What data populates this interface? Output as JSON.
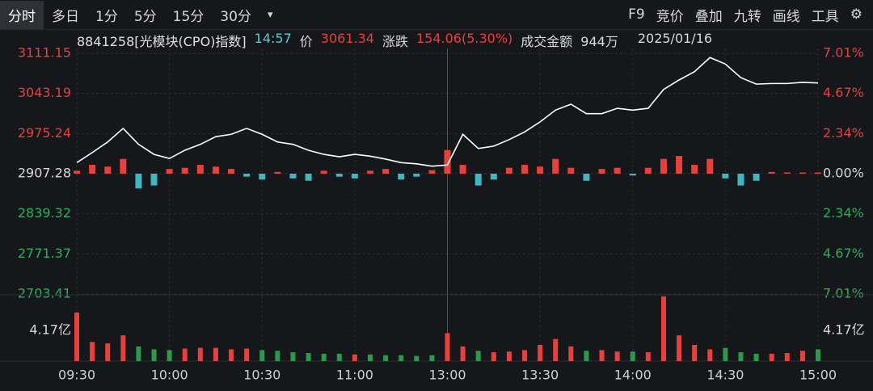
{
  "toolbar": {
    "tabs": [
      "分时",
      "多日",
      "1分",
      "5分",
      "15分",
      "30分"
    ],
    "tools": [
      "F9",
      "竞价",
      "叠加",
      "九转",
      "画线",
      "工具"
    ]
  },
  "info": {
    "code": "8841258[光模块(CPO)指数]",
    "time": "14:57",
    "price_label": "价",
    "price": "3061.34",
    "change_label": "涨跌",
    "change": "154.06(5.30%)",
    "amount_label": "成交金额",
    "amount": "944万",
    "date": "2025/01/16"
  },
  "chart_data": [
    {
      "type": "line",
      "name": "price",
      "color": "#ffffff",
      "up_color": "#e8403b",
      "down_color": "#3fb7c0",
      "x": [
        0,
        5,
        10,
        15,
        20,
        25,
        30,
        35,
        40,
        45,
        50,
        55,
        60,
        65,
        70,
        75,
        80,
        85,
        90,
        95,
        100,
        105,
        110,
        115,
        120,
        125,
        130,
        135,
        140,
        145,
        150,
        155,
        160,
        165,
        170,
        175,
        180,
        185,
        190,
        195,
        200,
        205,
        210,
        215,
        220,
        225,
        230,
        235,
        240
      ],
      "values": [
        2926,
        2943,
        2961,
        2984,
        2957,
        2940,
        2933,
        2947,
        2957,
        2970,
        2974,
        2984,
        2974,
        2961,
        2957,
        2947,
        2940,
        2936,
        2940,
        2937,
        2932,
        2926,
        2924,
        2920,
        2922,
        2974,
        2950,
        2954,
        2965,
        2978,
        2995,
        3015,
        3025,
        3009,
        3009,
        3018,
        3015,
        3018,
        3050,
        3066,
        3080,
        3104,
        3093,
        3070,
        3059,
        3060,
        3060,
        3062,
        3061
      ],
      "histogram": [
        5,
        15,
        12,
        25,
        -25,
        -20,
        8,
        10,
        15,
        12,
        8,
        -5,
        -10,
        3,
        -8,
        -12,
        5,
        -5,
        -8,
        5,
        8,
        -10,
        -5,
        6,
        40,
        15,
        -20,
        -10,
        10,
        15,
        12,
        25,
        10,
        -12,
        8,
        10,
        -3,
        10,
        25,
        30,
        15,
        25,
        -8,
        -20,
        -12,
        3,
        2,
        2,
        2
      ],
      "xlim": [
        0,
        240
      ],
      "xticks": [
        {
          "value": 0,
          "label": "09:30"
        },
        {
          "value": 30,
          "label": "10:00"
        },
        {
          "value": 60,
          "label": "10:30"
        },
        {
          "value": 90,
          "label": "11:00"
        },
        {
          "value": 120,
          "label": "13:00"
        },
        {
          "value": 150,
          "label": "13:30"
        },
        {
          "value": 180,
          "label": "14:00"
        },
        {
          "value": 210,
          "label": "14:30"
        },
        {
          "value": 240,
          "label": "15:00"
        }
      ],
      "ylim": [
        2703.41,
        3111.15
      ],
      "yticks": [
        3111.15,
        3043.19,
        2975.24,
        2907.28,
        2839.32,
        2771.37,
        2703.41
      ],
      "y2lim": [
        -7.01,
        7.01
      ],
      "y2ticks": [
        {
          "value": 7.01,
          "label": "7.01%"
        },
        {
          "value": 4.67,
          "label": "4.67%"
        },
        {
          "value": 2.34,
          "label": "2.34%"
        },
        {
          "value": 0,
          "label": "0.00%"
        },
        {
          "value": -2.34,
          "label": "2.34%"
        },
        {
          "value": -4.67,
          "label": "4.67%"
        },
        {
          "value": -7.01,
          "label": "7.01%"
        }
      ],
      "grid": true
    },
    {
      "type": "bar",
      "name": "volume",
      "up_color": "#e8403b",
      "down_color": "#2b9a4a",
      "values": [
        6.6,
        2.6,
        2.4,
        3.5,
        2.0,
        1.6,
        1.5,
        1.7,
        1.8,
        1.8,
        1.6,
        1.7,
        1.5,
        1.4,
        1.2,
        1.1,
        1.0,
        1.0,
        0.9,
        0.9,
        0.8,
        0.8,
        0.7,
        0.8,
        3.8,
        2.0,
        1.4,
        1.2,
        1.3,
        1.5,
        2.2,
        3.0,
        2.0,
        1.4,
        1.5,
        1.3,
        1.3,
        1.2,
        8.8,
        3.5,
        2.2,
        1.6,
        1.8,
        1.2,
        1.0,
        1.0,
        1.1,
        1.4,
        1.6
      ],
      "ylim": [
        0,
        9
      ],
      "yticks": [
        {
          "value": 4.17,
          "label": "4.17亿"
        }
      ]
    }
  ]
}
